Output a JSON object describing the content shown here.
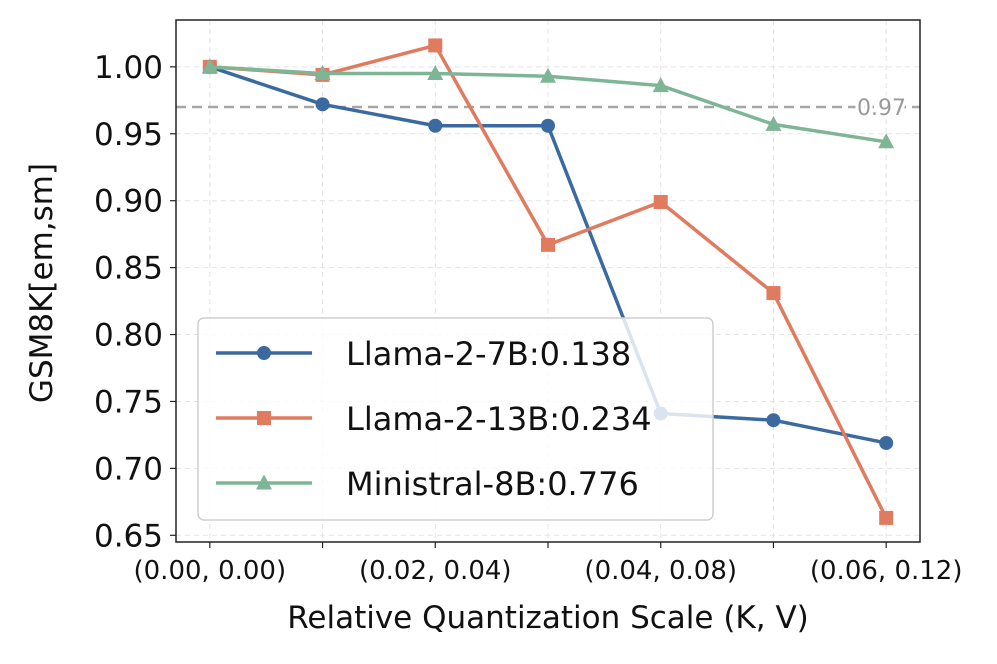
{
  "chart_data": {
    "type": "line",
    "title": "",
    "xlabel": "Relative Quantization Scale (K, V)",
    "ylabel": "GSM8K[em,sm]",
    "x": [
      0,
      1,
      2,
      3,
      4,
      5,
      6
    ],
    "xticks": [
      0,
      2,
      4,
      6
    ],
    "xtick_labels": [
      "(0.00, 0.00)",
      "(0.02, 0.04)",
      "(0.04, 0.08)",
      "(0.06, 0.12)"
    ],
    "xlim": [
      -0.3,
      6.3
    ],
    "ylim": [
      0.645,
      1.035
    ],
    "yticks": [
      0.65,
      0.7,
      0.75,
      0.8,
      0.85,
      0.9,
      0.95,
      1.0
    ],
    "ytick_labels": [
      "0.65",
      "0.70",
      "0.75",
      "0.80",
      "0.85",
      "0.90",
      "0.95",
      "1.00"
    ],
    "grid": true,
    "legend_position": "bottom-left",
    "reference_line": {
      "value": 0.97,
      "label": "0.97",
      "color": "#a6a6a6"
    },
    "series": [
      {
        "name": "Llama-2-7B:0.138",
        "color": "#3a6aa0",
        "marker": "circle",
        "values": [
          1.0,
          0.972,
          0.956,
          0.956,
          0.741,
          0.736,
          0.719
        ]
      },
      {
        "name": "Llama-2-13B:0.234",
        "color": "#e07b5f",
        "marker": "square",
        "values": [
          1.0,
          0.994,
          1.016,
          0.867,
          0.899,
          0.831,
          0.663
        ]
      },
      {
        "name": "Ministral-8B:0.776",
        "color": "#7fb597",
        "marker": "triangle",
        "values": [
          1.0,
          0.995,
          0.995,
          0.993,
          0.986,
          0.957,
          0.944
        ]
      }
    ]
  }
}
